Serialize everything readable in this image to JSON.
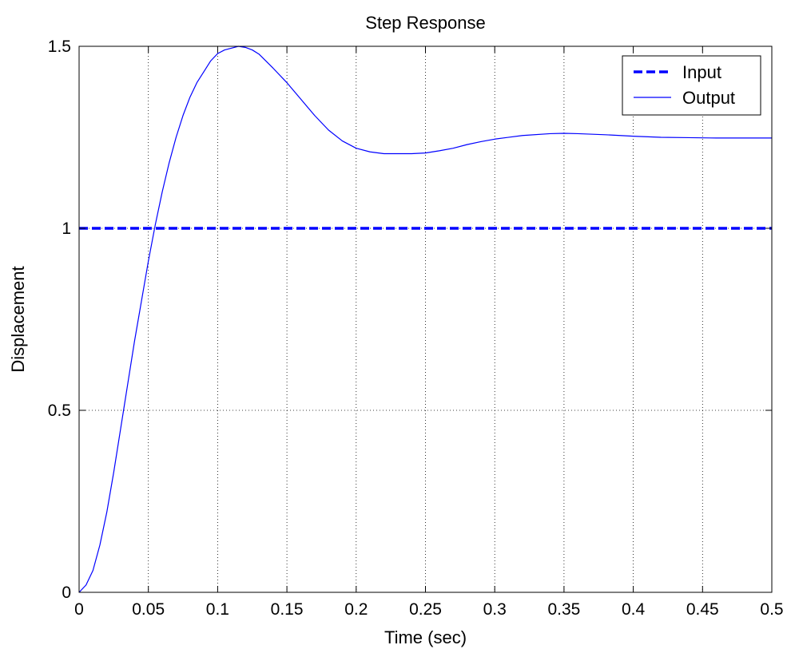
{
  "chart_data": {
    "type": "line",
    "title": "Step Response",
    "xlabel": "Time (sec)",
    "ylabel": "Displacement",
    "xlim": [
      0,
      0.5
    ],
    "ylim": [
      0,
      1.5
    ],
    "x_ticks": [
      0,
      0.05,
      0.1,
      0.15,
      0.2,
      0.25,
      0.3,
      0.35,
      0.4,
      0.45,
      0.5
    ],
    "x_tick_labels": [
      "0",
      "0.05",
      "0.1",
      "0.15",
      "0.2",
      "0.25",
      "0.3",
      "0.35",
      "0.4",
      "0.45",
      "0.5"
    ],
    "y_ticks": [
      0,
      0.5,
      1,
      1.5
    ],
    "y_tick_labels": [
      "0",
      "0.5",
      "1",
      "1.5"
    ],
    "grid": true,
    "legend_position": "top-right",
    "series": [
      {
        "name": "Input",
        "color": "#0000ff",
        "style": "dashed",
        "x": [
          0,
          0.5
        ],
        "y": [
          1,
          1
        ]
      },
      {
        "name": "Output",
        "color": "#0000ff",
        "style": "solid",
        "x": [
          0,
          0.005,
          0.01,
          0.015,
          0.02,
          0.025,
          0.03,
          0.035,
          0.04,
          0.045,
          0.05,
          0.055,
          0.06,
          0.065,
          0.07,
          0.075,
          0.08,
          0.085,
          0.09,
          0.095,
          0.1,
          0.105,
          0.11,
          0.115,
          0.12,
          0.125,
          0.13,
          0.14,
          0.15,
          0.16,
          0.17,
          0.18,
          0.19,
          0.2,
          0.21,
          0.22,
          0.23,
          0.24,
          0.25,
          0.26,
          0.27,
          0.28,
          0.29,
          0.3,
          0.32,
          0.34,
          0.35,
          0.36,
          0.38,
          0.4,
          0.42,
          0.44,
          0.46,
          0.48,
          0.5
        ],
        "y": [
          0,
          0.02,
          0.06,
          0.13,
          0.22,
          0.33,
          0.45,
          0.57,
          0.69,
          0.8,
          0.91,
          1.01,
          1.1,
          1.18,
          1.25,
          1.31,
          1.36,
          1.4,
          1.43,
          1.46,
          1.48,
          1.49,
          1.495,
          1.5,
          1.497,
          1.49,
          1.478,
          1.44,
          1.4,
          1.355,
          1.31,
          1.27,
          1.24,
          1.22,
          1.21,
          1.205,
          1.205,
          1.205,
          1.207,
          1.213,
          1.22,
          1.23,
          1.238,
          1.245,
          1.255,
          1.26,
          1.261,
          1.26,
          1.257,
          1.253,
          1.25,
          1.249,
          1.248,
          1.248,
          1.248
        ]
      }
    ]
  }
}
